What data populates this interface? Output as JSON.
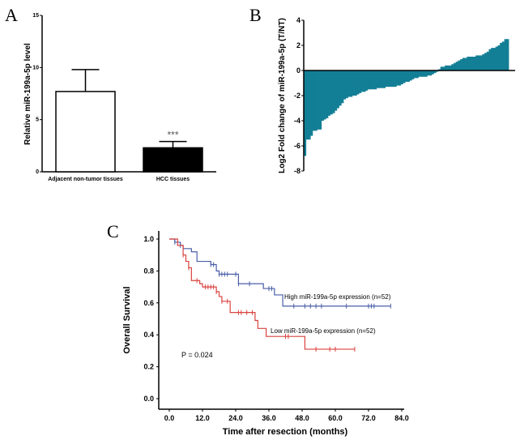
{
  "panels": {
    "a": "A",
    "b": "B",
    "c": "C"
  },
  "chart_data": [
    {
      "type": "bar",
      "panel": "A",
      "categories": [
        "Adjacent non-tumor tissues",
        "HCC tissues"
      ],
      "values": [
        7.7,
        2.3
      ],
      "error": [
        2.1,
        0.6
      ],
      "bar_colors": [
        "#ffffff",
        "#000000"
      ],
      "ylabel": "Relative miR-199a-5p level",
      "ylim": [
        0,
        15
      ],
      "yticks": [
        "0",
        "5",
        "10",
        "15"
      ],
      "annotation": "***"
    },
    {
      "type": "bar",
      "panel": "B",
      "ylabel": "Log2 Fold change of miR-199a-5p (T/NT)",
      "ylim": [
        -8,
        4
      ],
      "yticks": [
        "-8",
        "-6",
        "-4",
        "-2",
        "0",
        "2",
        "4"
      ],
      "color": "#137f96",
      "values": [
        -6.8,
        -5.5,
        -5.5,
        -5.2,
        -4.8,
        -4.8,
        -4.7,
        -4.7,
        -4.0,
        -3.9,
        -3.8,
        -3.6,
        -3.5,
        -3.4,
        -3.2,
        -3.0,
        -2.8,
        -2.6,
        -2.3,
        -2.2,
        -2.1,
        -2.1,
        -2.0,
        -2.0,
        -1.9,
        -1.8,
        -1.7,
        -1.7,
        -1.6,
        -1.5,
        -1.5,
        -1.5,
        -1.5,
        -1.4,
        -1.4,
        -1.4,
        -1.4,
        -1.3,
        -1.3,
        -1.3,
        -1.3,
        -1.3,
        -1.2,
        -1.2,
        -1.1,
        -1.0,
        -0.9,
        -0.9,
        -0.8,
        -0.7,
        -0.6,
        -0.6,
        -0.5,
        -0.5,
        -0.5,
        -0.5,
        -0.4,
        -0.4,
        -0.3,
        -0.2,
        -0.1,
        0.1,
        0.3,
        0.3,
        0.4,
        0.4,
        0.4,
        0.5,
        0.6,
        0.7,
        0.8,
        0.9,
        1.0,
        1.0,
        1.1,
        1.1,
        1.1,
        1.1,
        1.2,
        1.2,
        1.2,
        1.3,
        1.4,
        1.5,
        1.7,
        1.8,
        1.8,
        1.9,
        2.0,
        2.2,
        2.3,
        2.5,
        2.5
      ]
    },
    {
      "type": "line",
      "panel": "C",
      "subtype": "kaplan-meier",
      "xlabel": "Time after resection (months)",
      "ylabel": "Overall Survival",
      "xlim": [
        0,
        84
      ],
      "ylim": [
        0,
        1
      ],
      "xticks": [
        "0.0",
        "12.0",
        "24.0",
        "36.0",
        "48.0",
        "60.0",
        "72.0",
        "84.0"
      ],
      "yticks": [
        "0.0",
        "0.2",
        "0.4",
        "0.6",
        "0.8",
        "1.0"
      ],
      "annotation": "P = 0.024",
      "series": [
        {
          "name": "High miR-199a-5p expression (n=52)",
          "color": "#4a5ea8",
          "steps": [
            [
              0,
              1.0
            ],
            [
              2,
              0.98
            ],
            [
              4,
              0.96
            ],
            [
              5,
              0.94
            ],
            [
              8,
              0.92
            ],
            [
              10,
              0.86
            ],
            [
              15,
              0.84
            ],
            [
              17,
              0.8
            ],
            [
              18,
              0.78
            ],
            [
              25,
              0.72
            ],
            [
              34,
              0.69
            ],
            [
              38,
              0.65
            ],
            [
              41,
              0.58
            ],
            [
              80,
              0.58
            ]
          ],
          "censored": [
            2,
            4,
            15,
            16,
            18,
            19,
            20,
            21,
            24,
            25,
            29,
            36,
            37,
            45,
            49,
            51,
            53,
            55,
            64,
            72,
            73,
            74,
            80
          ]
        },
        {
          "name": "Low miR-199a-5p expression (n=52)",
          "color": "#d9423f",
          "steps": [
            [
              0,
              1.0
            ],
            [
              3,
              0.96
            ],
            [
              5,
              0.9
            ],
            [
              6,
              0.86
            ],
            [
              7,
              0.82
            ],
            [
              8,
              0.74
            ],
            [
              11,
              0.72
            ],
            [
              12,
              0.7
            ],
            [
              17,
              0.67
            ],
            [
              18,
              0.64
            ],
            [
              19,
              0.61
            ],
            [
              22,
              0.54
            ],
            [
              31,
              0.49
            ],
            [
              32,
              0.44
            ],
            [
              35,
              0.39
            ],
            [
              49,
              0.31
            ],
            [
              67,
              0.31
            ]
          ],
          "censored": [
            5,
            7,
            10,
            13,
            14,
            15,
            16,
            17,
            19,
            21,
            25,
            26,
            28,
            30,
            42,
            43,
            53,
            58,
            60,
            67
          ]
        }
      ]
    }
  ]
}
